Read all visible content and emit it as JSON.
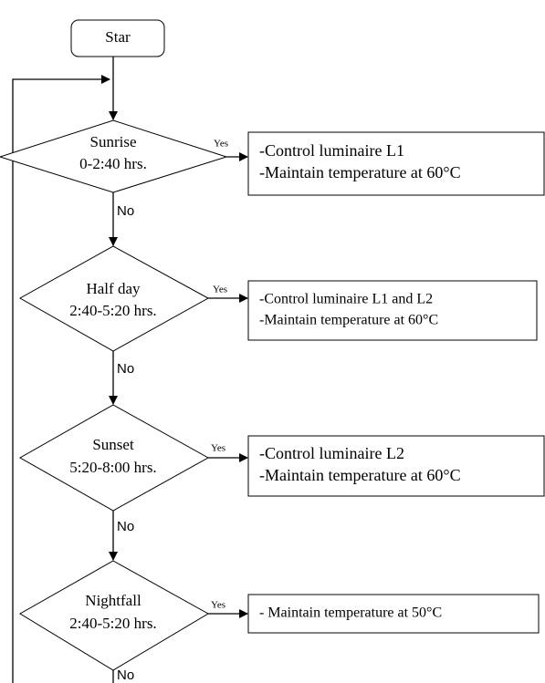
{
  "start": {
    "label": "Star"
  },
  "decisions": [
    {
      "lines": [
        "Sunrise",
        "0-2:40 hrs."
      ],
      "yes": "Yes",
      "no": "No"
    },
    {
      "lines": [
        "Half day",
        "2:40-5:20 hrs."
      ],
      "yes": "Yes",
      "no": "No"
    },
    {
      "lines": [
        "Sunset",
        "5:20-8:00 hrs."
      ],
      "yes": "Yes",
      "no": "No"
    },
    {
      "lines": [
        "Nightfall",
        "2:40-5:20 hrs."
      ],
      "yes": "Yes",
      "no": "No"
    }
  ],
  "actions": [
    {
      "lines": [
        "-Control luminaire L1",
        "-Maintain temperature at 60°C"
      ]
    },
    {
      "lines": [
        "-Control luminaire L1 and L2",
        "-Maintain temperature at 60°C"
      ]
    },
    {
      "lines": [
        "-Control luminaire L2",
        "-Maintain temperature at 60°C"
      ]
    },
    {
      "lines": [
        "- Maintain temperature at 50°C"
      ]
    }
  ]
}
